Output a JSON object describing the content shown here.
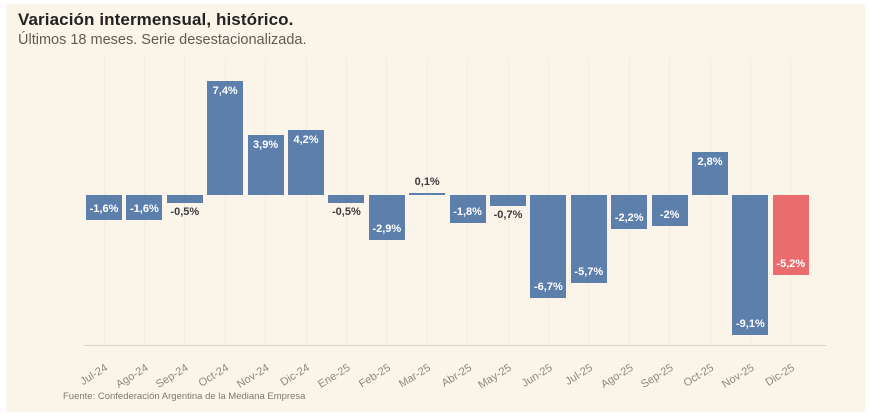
{
  "header": {
    "title": "Variación intermensual, histórico.",
    "subtitle": "Últimos 18 meses. Serie desestacionalizada."
  },
  "footer": {
    "source": "Fuente: Confederación Argentina de la Mediana Empresa"
  },
  "colors": {
    "background": "#FBF4E9",
    "bar": "#5C7FAC",
    "bar_highlight": "#EB6C6C",
    "label_inside": "#FFFFFF",
    "label_outside": "#3C3C3C",
    "gridline": "#F3EBDD",
    "axis_line": "#DAD3C6",
    "tick_label": "#8D897F"
  },
  "chart_data": {
    "type": "bar",
    "title": "Variación intermensual, histórico.",
    "subtitle": "Últimos 18 meses. Serie desestacionalizada.",
    "unit": "%",
    "categories": [
      "Jul-24",
      "Ago-24",
      "Sep-24",
      "Oct-24",
      "Nov-24",
      "Dic-24",
      "Ene-25",
      "Feb-25",
      "Mar-25",
      "Abr-25",
      "May-25",
      "Jun-25",
      "Jul-25",
      "Ago-25",
      "Sep-25",
      "Oct-25",
      "Nov-25",
      "Dic-25"
    ],
    "values": [
      -1.6,
      -1.6,
      -0.5,
      7.4,
      3.9,
      4.2,
      -0.5,
      -2.9,
      0.1,
      -1.8,
      -0.7,
      -6.7,
      -5.7,
      -2.2,
      -2.0,
      2.8,
      -9.1,
      -5.2
    ],
    "labels": [
      "-1,6%",
      "-1,6%",
      "-0,5%",
      "7,4%",
      "3,9%",
      "4,2%",
      "-0,5%",
      "-2,9%",
      "0,1%",
      "-1,8%",
      "-0,7%",
      "-6,7%",
      "-5,7%",
      "-2,2%",
      "-2%",
      "2,8%",
      "-9,1%",
      "-5,2%"
    ],
    "highlight_category": "Dic-25",
    "ylim": [
      -10,
      8
    ],
    "xlabel": "",
    "ylabel": "",
    "grid": "vertical-faint",
    "legend": "none",
    "source": "Fuente: Confederación Argentina de la Mediana Empresa"
  }
}
